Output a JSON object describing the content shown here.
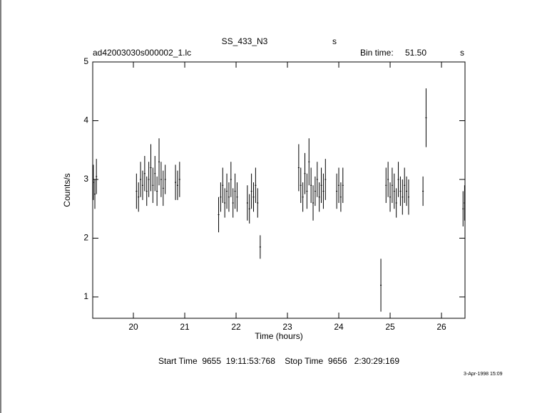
{
  "chart_data": {
    "type": "errorbar",
    "title": "SS_433_N3",
    "title_suffix": "s",
    "file_label": "ad42003030s000002_1.lc",
    "bin_time_label": "Bin time:",
    "bin_time": "51.50",
    "bin_time_unit": "s",
    "x_label": "Time (hours)",
    "y_label": "Counts/s",
    "footer": "Start Time  9655  19:11:53:768    Stop Time  9656   2:30:29:169",
    "date_stamp": "3-Apr-1998 15:09",
    "color": "#000000",
    "xlim": [
      19.208,
      26.458
    ],
    "ylim": [
      0.636,
      5
    ],
    "xticks": [
      20,
      21,
      22,
      23,
      24,
      25,
      26
    ],
    "yticks": [
      1,
      2,
      3,
      4,
      5
    ],
    "x": [
      19.22,
      19.25,
      19.28,
      20.06,
      20.1,
      20.14,
      20.18,
      20.22,
      20.26,
      20.3,
      20.34,
      20.38,
      20.42,
      20.46,
      20.5,
      20.54,
      20.58,
      20.62,
      20.82,
      20.86,
      20.9,
      21.66,
      21.7,
      21.74,
      21.78,
      21.82,
      21.86,
      21.9,
      21.94,
      21.98,
      22.02,
      22.22,
      22.26,
      22.3,
      22.34,
      22.38,
      22.42,
      22.47,
      23.22,
      23.26,
      23.3,
      23.34,
      23.38,
      23.42,
      23.46,
      23.5,
      23.54,
      23.58,
      23.62,
      23.66,
      23.7,
      23.74,
      23.96,
      24.0,
      24.04,
      24.08,
      24.82,
      24.92,
      24.96,
      25.0,
      25.04,
      25.08,
      25.12,
      25.16,
      25.2,
      25.24,
      25.28,
      25.32,
      25.36,
      25.64,
      25.7,
      26.42,
      26.45
    ],
    "values": [
      2.95,
      2.75,
      3.05,
      2.8,
      2.7,
      3.0,
      2.9,
      3.1,
      2.8,
      3.0,
      3.2,
      2.9,
      3.1,
      2.8,
      3.3,
      3.0,
      2.85,
      3.0,
      2.95,
      2.9,
      3.0,
      2.4,
      2.7,
      2.9,
      2.6,
      2.8,
      2.7,
      3.0,
      2.6,
      2.8,
      2.7,
      2.6,
      2.5,
      2.8,
      2.7,
      2.9,
      2.6,
      1.85,
      3.2,
      2.9,
      2.7,
      3.1,
      2.8,
      3.3,
      2.9,
      2.6,
      2.8,
      3.0,
      2.7,
      2.9,
      2.8,
      3.0,
      2.8,
      2.9,
      2.7,
      2.9,
      1.2,
      2.9,
      3.0,
      2.7,
      2.9,
      2.8,
      2.6,
      3.0,
      2.8,
      2.7,
      2.9,
      2.8,
      2.7,
      2.8,
      4.05,
      2.5,
      2.6
    ],
    "errors": [
      0.3,
      0.25,
      0.3,
      0.3,
      0.25,
      0.3,
      0.25,
      0.3,
      0.25,
      0.3,
      0.4,
      0.3,
      0.3,
      0.25,
      0.4,
      0.3,
      0.3,
      0.25,
      0.3,
      0.25,
      0.3,
      0.3,
      0.25,
      0.3,
      0.25,
      0.3,
      0.25,
      0.3,
      0.25,
      0.3,
      0.25,
      0.3,
      0.25,
      0.3,
      0.25,
      0.3,
      0.25,
      0.2,
      0.4,
      0.3,
      0.25,
      0.35,
      0.3,
      0.4,
      0.3,
      0.3,
      0.25,
      0.3,
      0.25,
      0.3,
      0.3,
      0.35,
      0.3,
      0.3,
      0.25,
      0.3,
      0.45,
      0.3,
      0.3,
      0.25,
      0.3,
      0.3,
      0.25,
      0.3,
      0.25,
      0.3,
      0.3,
      0.25,
      0.3,
      0.25,
      0.5,
      0.3,
      0.3
    ]
  }
}
